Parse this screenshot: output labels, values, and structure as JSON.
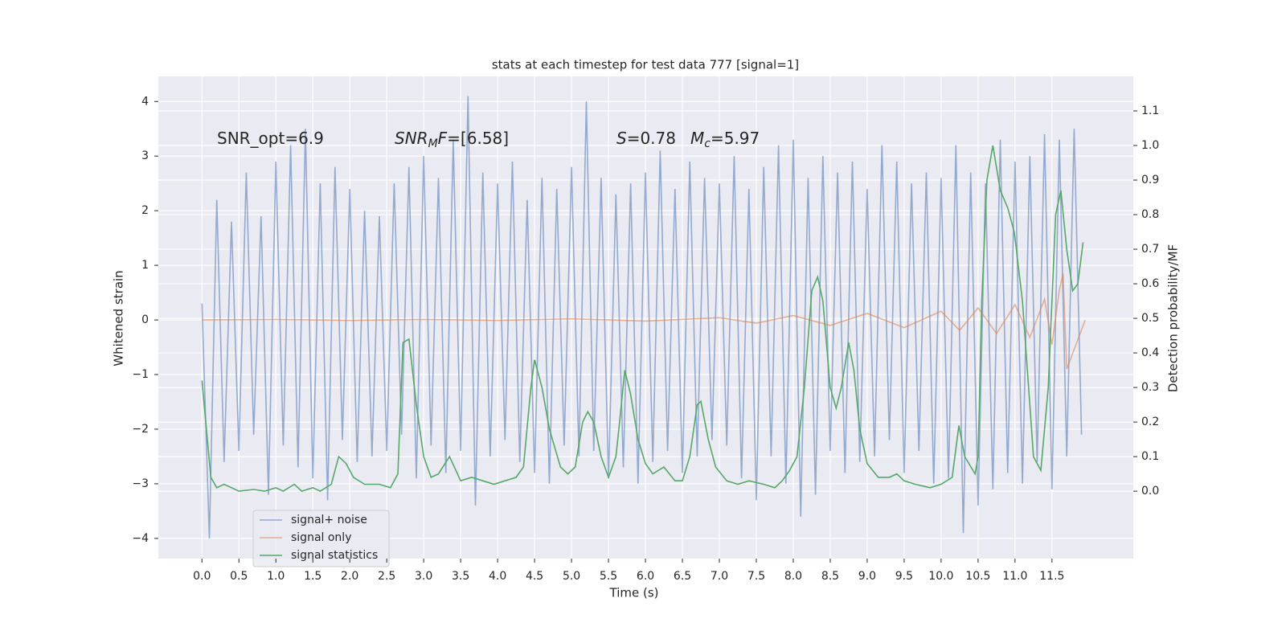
{
  "chart_data": {
    "type": "line",
    "title": "stats at each timestep for test data 777 [signal=1]",
    "x_label": "Time (s)",
    "y_label": "Whitened strain",
    "y2_label": "Detection probability/MF",
    "annotations": [
      [
        "SNR_opt=6.9"
      ],
      [
        "SNR",
        "M",
        "F",
        "=[6.58]"
      ],
      [
        "S",
        "=0.78"
      ],
      [
        "M",
        "c",
        "=5.97"
      ]
    ],
    "xlim": [
      -0.59,
      12.6
    ],
    "ylim": [
      -4.37,
      4.46
    ],
    "y2lim": [
      -0.195,
      1.2
    ],
    "xticks": [
      {
        "value": 0,
        "label": "0.0"
      },
      0.5,
      {
        "value": 1,
        "label": "1.0"
      },
      1.5,
      {
        "value": 2,
        "label": "2.0"
      },
      2.5,
      {
        "value": 3,
        "label": "3.0"
      },
      3.5,
      {
        "value": 4,
        "label": "4.0"
      },
      4.5,
      {
        "value": 5,
        "label": "5.0"
      },
      5.5,
      {
        "value": 6,
        "label": "6.0"
      },
      6.5,
      {
        "value": 7,
        "label": "7.0"
      },
      7.5,
      {
        "value": 8,
        "label": "8.0"
      },
      8.5,
      {
        "value": 9,
        "label": "9.0"
      },
      9.5,
      {
        "value": 10,
        "label": "10.0"
      },
      10.5,
      {
        "value": 11,
        "label": "11.0"
      },
      11.5
    ],
    "yticks": [
      {
        "value": -4,
        "label": "−4"
      },
      {
        "value": -3,
        "label": "−3"
      },
      {
        "value": -2,
        "label": "−2"
      },
      {
        "value": -1,
        "label": "−1"
      },
      0,
      1,
      2,
      3,
      4
    ],
    "y2ticks": [
      {
        "value": 0,
        "label": "0.0"
      },
      0.1,
      0.2,
      0.3,
      0.4,
      0.5,
      0.6,
      0.7,
      0.8,
      0.9,
      {
        "value": 1,
        "label": "1.0"
      },
      1.1
    ],
    "grid": true,
    "legend": "lower left",
    "series": [
      {
        "name": "signal+ noise",
        "color": "#4c72b0",
        "x": [
          0,
          0.1,
          0.2,
          0.3,
          0.4,
          0.5,
          0.6,
          0.7,
          0.8,
          0.9,
          1,
          1.1,
          1.2,
          1.3,
          1.4,
          1.5,
          1.6,
          1.7,
          1.8,
          1.9,
          2,
          2.1,
          2.2,
          2.3,
          2.4,
          2.5,
          2.6,
          2.7,
          2.8,
          2.9,
          3,
          3.1,
          3.2,
          3.3,
          3.4,
          3.5,
          3.6,
          3.7,
          3.8,
          3.9,
          4,
          4.1,
          4.2,
          4.3,
          4.4,
          4.5,
          4.6,
          4.7,
          4.8,
          4.9,
          5,
          5.1,
          5.2,
          5.3,
          5.4,
          5.5,
          5.6,
          5.7,
          5.8,
          5.9,
          6,
          6.1,
          6.2,
          6.3,
          6.4,
          6.5,
          6.6,
          6.7,
          6.8,
          6.9,
          7,
          7.1,
          7.2,
          7.3,
          7.4,
          7.5,
          7.6,
          7.7,
          7.8,
          7.9,
          8,
          8.1,
          8.2,
          8.3,
          8.4,
          8.5,
          8.6,
          8.7,
          8.8,
          8.9,
          9,
          9.1,
          9.2,
          9.3,
          9.4,
          9.5,
          9.6,
          9.7,
          9.8,
          9.9,
          10,
          10.1,
          10.2,
          10.3,
          10.4,
          10.5,
          10.6,
          10.7,
          10.8,
          10.9,
          11,
          11.1,
          11.2,
          11.3,
          11.4,
          11.5,
          11.6,
          11.7,
          11.8,
          11.9
        ],
        "values": [
          0.3,
          -4.0,
          2.2,
          -2.6,
          1.8,
          -2.4,
          2.7,
          -2.1,
          1.9,
          -3.2,
          2.9,
          -2.3,
          3.2,
          -2.7,
          3.5,
          -2.9,
          2.5,
          -3.3,
          2.8,
          -2.2,
          2.4,
          -2.6,
          2.0,
          -2.5,
          1.9,
          -2.4,
          2.5,
          -2.1,
          2.8,
          -2.9,
          3.0,
          -2.3,
          2.6,
          -2.8,
          3.3,
          -2.4,
          4.1,
          -3.4,
          2.7,
          -2.5,
          2.5,
          -2.2,
          2.9,
          -2.6,
          2.2,
          -2.8,
          2.6,
          -3.0,
          2.4,
          -2.3,
          2.8,
          -2.5,
          4.0,
          -2.4,
          2.6,
          -2.9,
          2.3,
          -2.7,
          2.5,
          -3.0,
          2.7,
          -2.6,
          3.1,
          -2.4,
          2.4,
          -2.8,
          2.9,
          -2.5,
          2.6,
          -2.2,
          2.5,
          -2.3,
          3.0,
          -2.9,
          2.4,
          -3.3,
          2.8,
          -2.5,
          3.2,
          -3.0,
          3.3,
          -3.6,
          2.6,
          -3.2,
          3.0,
          -2.4,
          2.7,
          -2.8,
          2.9,
          -2.6,
          2.4,
          -2.5,
          3.2,
          -2.2,
          2.9,
          -2.8,
          2.5,
          -2.4,
          2.7,
          -3.0,
          2.6,
          -2.9,
          3.2,
          -3.9,
          2.7,
          -3.4,
          2.5,
          -3.1,
          3.3,
          -2.8,
          2.9,
          -3.0,
          3.0,
          -2.6,
          3.4,
          -3.1,
          3.3,
          -2.5,
          3.5,
          -2.1
        ]
      },
      {
        "name": "signal only",
        "color": "#dd8452",
        "x": [
          0,
          1,
          2,
          3,
          4,
          5,
          6,
          7,
          7.5,
          8,
          8.5,
          9,
          9.5,
          10,
          10.25,
          10.5,
          10.75,
          11,
          11.2,
          11.4,
          11.5,
          11.6,
          11.65,
          11.7,
          11.95
        ],
        "values": [
          0,
          0.01,
          -0.01,
          0.01,
          -0.01,
          0.02,
          -0.02,
          0.04,
          -0.06,
          0.08,
          -0.1,
          0.12,
          -0.14,
          0.16,
          -0.19,
          0.22,
          -0.25,
          0.28,
          -0.32,
          0.38,
          -0.45,
          0.55,
          0.85,
          -0.9,
          0
        ]
      },
      {
        "name": "signal statistics",
        "color": "#55a868",
        "axis": "y2",
        "x": [
          0,
          0.12,
          0.2,
          0.3,
          0.5,
          0.7,
          0.85,
          1.0,
          1.1,
          1.25,
          1.35,
          1.5,
          1.6,
          1.75,
          1.85,
          1.95,
          2.05,
          2.2,
          2.4,
          2.55,
          2.65,
          2.72,
          2.8,
          2.9,
          3.0,
          3.1,
          3.2,
          3.35,
          3.5,
          3.65,
          3.8,
          3.95,
          4.1,
          4.25,
          4.35,
          4.45,
          4.5,
          4.6,
          4.7,
          4.85,
          4.95,
          5.05,
          5.15,
          5.22,
          5.3,
          5.4,
          5.5,
          5.6,
          5.65,
          5.72,
          5.8,
          5.9,
          6.0,
          6.1,
          6.25,
          6.4,
          6.5,
          6.6,
          6.7,
          6.75,
          6.85,
          6.95,
          7.1,
          7.25,
          7.4,
          7.6,
          7.75,
          7.85,
          7.95,
          8.05,
          8.15,
          8.25,
          8.33,
          8.4,
          8.5,
          8.58,
          8.65,
          8.75,
          8.82,
          8.9,
          9.0,
          9.15,
          9.3,
          9.4,
          9.5,
          9.65,
          9.85,
          10.0,
          10.15,
          10.24,
          10.32,
          10.46,
          10.5,
          10.55,
          10.62,
          10.7,
          10.8,
          10.9,
          10.99,
          11.1,
          11.2,
          11.25,
          11.35,
          11.45,
          11.55,
          11.62,
          11.7,
          11.78,
          11.85,
          11.92
        ],
        "values": [
          0.32,
          0.04,
          0.01,
          0.02,
          0,
          0.005,
          0,
          0.01,
          0,
          0.02,
          0,
          0.01,
          0,
          0.02,
          0.1,
          0.08,
          0.04,
          0.02,
          0.02,
          0.01,
          0.05,
          0.43,
          0.44,
          0.25,
          0.1,
          0.04,
          0.05,
          0.1,
          0.03,
          0.04,
          0.03,
          0.02,
          0.03,
          0.04,
          0.07,
          0.3,
          0.38,
          0.3,
          0.18,
          0.07,
          0.05,
          0.07,
          0.2,
          0.23,
          0.2,
          0.1,
          0.04,
          0.1,
          0.2,
          0.35,
          0.28,
          0.15,
          0.08,
          0.05,
          0.07,
          0.03,
          0.03,
          0.1,
          0.25,
          0.26,
          0.15,
          0.07,
          0.03,
          0.02,
          0.03,
          0.02,
          0.01,
          0.03,
          0.06,
          0.1,
          0.3,
          0.58,
          0.62,
          0.55,
          0.3,
          0.24,
          0.3,
          0.43,
          0.35,
          0.18,
          0.08,
          0.04,
          0.04,
          0.05,
          0.03,
          0.02,
          0.01,
          0.02,
          0.04,
          0.19,
          0.1,
          0.05,
          0.1,
          0.55,
          0.9,
          1.0,
          0.87,
          0.82,
          0.75,
          0.55,
          0.25,
          0.1,
          0.06,
          0.3,
          0.8,
          0.87,
          0.7,
          0.58,
          0.6,
          0.72
        ]
      }
    ]
  }
}
